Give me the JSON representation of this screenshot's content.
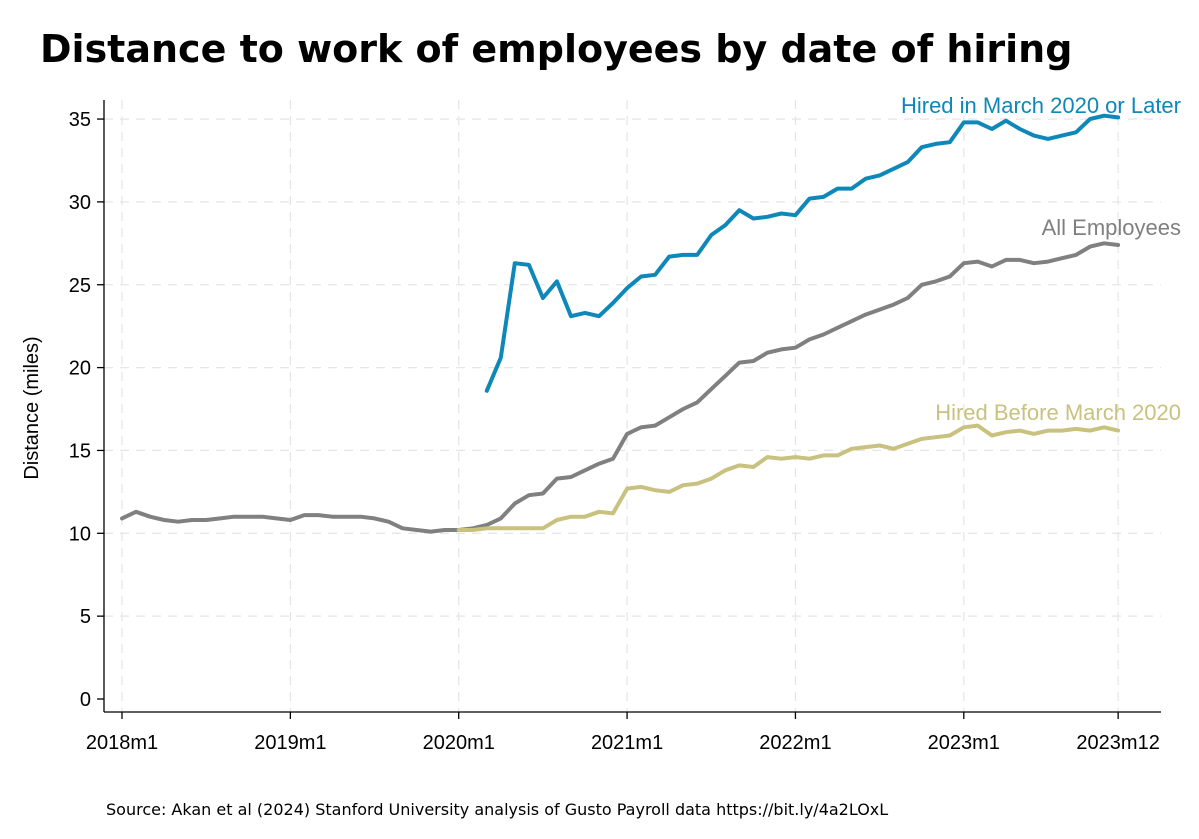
{
  "chart_data": {
    "type": "line",
    "title": "Distance to work of employees by date of hiring",
    "ylabel": "Distance (miles)",
    "xlabel": "",
    "ylim": [
      0,
      36
    ],
    "yticks": [
      0,
      5,
      10,
      15,
      20,
      25,
      30,
      35
    ],
    "xtick_labels": [
      "2018m1",
      "2019m1",
      "2020m1",
      "2021m1",
      "2022m1",
      "2023m1",
      "2023m12"
    ],
    "grid": true,
    "legend": "labels placed next to line ends (right)",
    "source": "Source: Akan et al (2024) Stanford University analysis of Gusto Payroll data https://bit.ly/4a2LOxL",
    "series": [
      {
        "name": "Hired in March 2020 or Later",
        "color": "#0e87b9",
        "start": "2020m3",
        "values": [
          18.6,
          20.6,
          26.3,
          26.2,
          24.2,
          25.2,
          23.1,
          23.3,
          23.1,
          23.9,
          24.8,
          25.5,
          25.6,
          26.7,
          26.8,
          26.8,
          28.0,
          28.6,
          29.5,
          29.0,
          29.1,
          29.3,
          29.2,
          30.2,
          30.3,
          30.8,
          30.8,
          31.4,
          31.6,
          32.0,
          32.4,
          33.3,
          33.5,
          33.6,
          34.8,
          34.8,
          34.4,
          34.9,
          34.4,
          34.0,
          33.8,
          34.0,
          34.2,
          35.0,
          35.2,
          35.1
        ]
      },
      {
        "name": "All Employees",
        "color": "#808080",
        "start": "2018m1",
        "values": [
          10.9,
          11.3,
          11.0,
          10.8,
          10.7,
          10.8,
          10.8,
          10.9,
          11.0,
          11.0,
          11.0,
          10.9,
          10.8,
          11.1,
          11.1,
          11.0,
          11.0,
          11.0,
          10.9,
          10.7,
          10.3,
          10.2,
          10.1,
          10.2,
          10.2,
          10.3,
          10.5,
          10.9,
          11.8,
          12.3,
          12.4,
          13.3,
          13.4,
          13.8,
          14.2,
          14.5,
          16.0,
          16.4,
          16.5,
          17.0,
          17.5,
          17.9,
          18.7,
          19.5,
          20.3,
          20.4,
          20.9,
          21.1,
          21.2,
          21.7,
          22.0,
          22.4,
          22.8,
          23.2,
          23.5,
          23.8,
          24.2,
          25.0,
          25.2,
          25.5,
          26.3,
          26.4,
          26.1,
          26.5,
          26.5,
          26.3,
          26.4,
          26.6,
          26.8,
          27.3,
          27.5,
          27.4
        ]
      },
      {
        "name": "Hired Before March 2020",
        "color": "#c9c17f",
        "start": "2020m1",
        "values": [
          10.2,
          10.2,
          10.3,
          10.3,
          10.3,
          10.3,
          10.3,
          10.8,
          11.0,
          11.0,
          11.3,
          11.2,
          12.7,
          12.8,
          12.6,
          12.5,
          12.9,
          13.0,
          13.3,
          13.8,
          14.1,
          14.0,
          14.6,
          14.5,
          14.6,
          14.5,
          14.7,
          14.7,
          15.1,
          15.2,
          15.3,
          15.1,
          15.4,
          15.7,
          15.8,
          15.9,
          16.4,
          16.5,
          15.9,
          16.1,
          16.2,
          16.0,
          16.2,
          16.2,
          16.3,
          16.2,
          16.4,
          16.2
        ]
      }
    ]
  }
}
